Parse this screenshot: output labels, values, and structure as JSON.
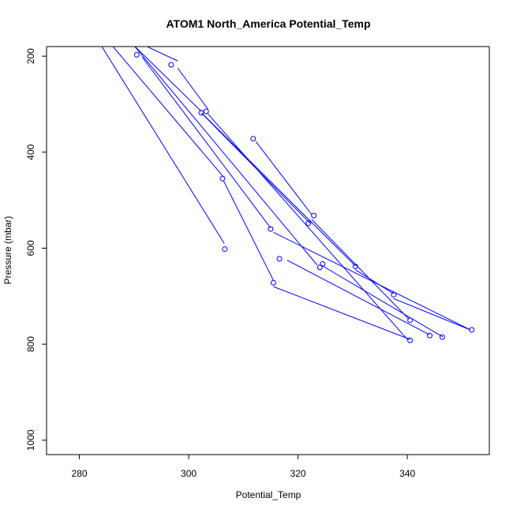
{
  "chart_data": {
    "type": "line",
    "title": "ATOM1 North_America Potential_Temp",
    "xlabel": "Potential_Temp",
    "ylabel": "Pressure (mbar)",
    "xlim": [
      274,
      355
    ],
    "ylim": [
      1030,
      180
    ],
    "y_reversed": true,
    "x_ticks": [
      280,
      300,
      320,
      340
    ],
    "y_ticks": [
      200,
      400,
      600,
      800,
      1000
    ],
    "color": "#0000ff",
    "grid": false,
    "legend": "none",
    "series": [
      {
        "type": "lines",
        "x": [
          284,
          306.5
        ],
        "y": [
          178,
          590
        ]
      },
      {
        "type": "lines",
        "x": [
          286,
          306.4
        ],
        "y": [
          178,
          452
        ]
      },
      {
        "type": "lines",
        "x": [
          306.4,
          315.5
        ],
        "y": [
          460,
          667
        ]
      },
      {
        "type": "lines",
        "x": [
          315.5,
          340.5
        ],
        "y": [
          680,
          790
        ]
      },
      {
        "type": "lines",
        "x": [
          318,
          344
        ],
        "y": [
          625,
          780
        ]
      },
      {
        "type": "lines",
        "x": [
          324.2,
          346.5
        ],
        "y": [
          635,
          785
        ]
      },
      {
        "type": "lines",
        "x": [
          291.5,
          315
        ],
        "y": [
          202,
          558
        ]
      },
      {
        "type": "lines",
        "x": [
          315.5,
          351.5
        ],
        "y": [
          567,
          770
        ]
      },
      {
        "type": "lines",
        "x": [
          290,
          302.3
        ],
        "y": [
          178,
          315
        ]
      },
      {
        "type": "lines",
        "x": [
          302.3,
          322.2
        ],
        "y": [
          318,
          548
        ]
      },
      {
        "type": "lines",
        "x": [
          290,
          323.5
        ],
        "y": [
          178,
          635
        ]
      },
      {
        "type": "lines",
        "x": [
          292,
          298
        ],
        "y": [
          178,
          210
        ]
      },
      {
        "type": "lines",
        "x": [
          298,
          303.5
        ],
        "y": [
          225,
          310
        ]
      },
      {
        "type": "lines",
        "x": [
          303.5,
          340
        ],
        "y": [
          320,
          790
        ]
      },
      {
        "type": "lines",
        "x": [
          312.3,
          322.5
        ],
        "y": [
          378,
          530
        ]
      },
      {
        "type": "lines",
        "x": [
          322.5,
          340.3
        ],
        "y": [
          540,
          748
        ]
      },
      {
        "type": "lines",
        "x": [
          302.7,
          330.5
        ],
        "y": [
          322,
          637
        ]
      },
      {
        "type": "lines",
        "x": [
          330.5,
          337.5
        ],
        "y": [
          645,
          695
        ]
      },
      {
        "type": "lines",
        "x": [
          337.5,
          351.5
        ],
        "y": [
          705,
          770
        ]
      },
      {
        "type": "points",
        "x": [
          290.5,
          296.8,
          302.3,
          303.2,
          311.8,
          306.2,
          315,
          306.6,
          316.6,
          315.5,
          321.9,
          322.9,
          324,
          324.5,
          330.5,
          337.5,
          340.5,
          340.5,
          344.1,
          346.4,
          351.8
        ],
        "y": [
          197,
          218,
          318,
          315,
          372,
          455,
          560,
          602,
          622,
          672,
          548,
          532,
          640,
          633,
          638,
          697,
          750,
          792,
          782,
          785,
          770
        ]
      }
    ]
  }
}
